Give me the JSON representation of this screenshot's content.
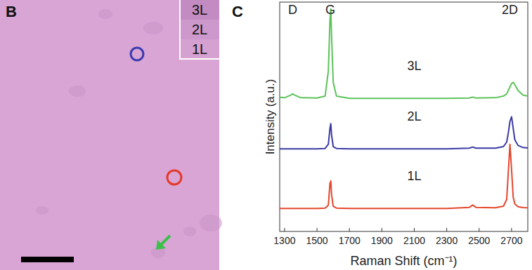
{
  "image_panel": {
    "letter": "B",
    "inset_labels": [
      "3L",
      "2L",
      "1L"
    ]
  },
  "chart_data": {
    "type": "line",
    "panel_letter": "C",
    "x_label": "Raman Shift (cm⁻¹)",
    "y_label": "Intensity (a.u.)",
    "xlim": [
      1270,
      2800
    ],
    "ylim": [
      0,
      100
    ],
    "xticks": [
      1300,
      1500,
      1700,
      1900,
      2100,
      2300,
      2500,
      2700
    ],
    "tick_labels": "x",
    "grid": false,
    "annotations": [
      {
        "text": "D",
        "x": 1350
      },
      {
        "text": "G",
        "x": 1582
      },
      {
        "text": "2D",
        "x": 2690
      }
    ],
    "x": [
      1270,
      1300,
      1340,
      1350,
      1360,
      1400,
      1500,
      1550,
      1570,
      1580,
      1585,
      1590,
      1600,
      1620,
      1700,
      1900,
      2100,
      2300,
      2440,
      2460,
      2480,
      2600,
      2650,
      2670,
      2680,
      2690,
      2700,
      2710,
      2720,
      2740,
      2770,
      2800
    ],
    "series": [
      {
        "name": "3L",
        "color": "#5cc35a",
        "values": [
          58.5,
          58.3,
          59.5,
          60,
          59.5,
          58.3,
          58.2,
          59,
          70,
          92,
          97,
          85,
          65,
          59,
          58,
          58,
          58,
          58,
          58.2,
          58.6,
          58.2,
          58.3,
          59,
          60,
          61.5,
          63,
          64.5,
          65,
          64,
          61.5,
          59.5,
          59
        ]
      },
      {
        "name": "2L",
        "color": "#3a3aa6",
        "values": [
          36,
          36,
          36,
          36,
          36,
          36,
          36,
          36.2,
          38,
          45,
          47,
          42,
          37,
          36.2,
          36,
          36,
          36,
          36,
          36.3,
          36.8,
          36.3,
          36.3,
          37,
          39,
          43,
          48,
          50,
          45,
          40,
          37.5,
          36.6,
          36.4
        ]
      },
      {
        "name": "1L",
        "color": "#e5472d",
        "values": [
          10,
          10,
          10,
          10,
          10,
          10,
          10,
          10.2,
          11.5,
          21,
          22,
          16,
          11,
          10.2,
          10,
          10,
          10,
          10,
          10.5,
          11.5,
          10.5,
          10.3,
          11,
          14,
          26,
          38,
          27,
          15,
          12,
          10.8,
          10.4,
          10.3
        ]
      }
    ]
  }
}
